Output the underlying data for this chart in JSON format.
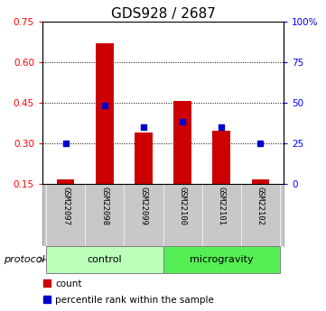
{
  "title": "GDS928 / 2687",
  "samples": [
    "GSM22097",
    "GSM22098",
    "GSM22099",
    "GSM22100",
    "GSM22101",
    "GSM22102"
  ],
  "red_bars": [
    0.165,
    0.67,
    0.34,
    0.455,
    0.345,
    0.165
  ],
  "blue_squares": [
    0.3,
    0.44,
    0.36,
    0.38,
    0.36,
    0.3
  ],
  "red_bar_bottom": 0.15,
  "ylim_left": [
    0.15,
    0.75
  ],
  "yticks_left": [
    0.15,
    0.3,
    0.45,
    0.6,
    0.75
  ],
  "ytick_labels_left": [
    "0.15",
    "0.30",
    "0.45",
    "0.60",
    "0.75"
  ],
  "yticks_right_vals": [
    0.15,
    0.3,
    0.45,
    0.6,
    0.75
  ],
  "ytick_labels_right": [
    "0",
    "25",
    "50",
    "75",
    "100%"
  ],
  "groups": [
    {
      "label": "control",
      "samples": [
        0,
        1,
        2
      ],
      "color": "#bbffbb"
    },
    {
      "label": "microgravity",
      "samples": [
        3,
        4,
        5
      ],
      "color": "#55ee55"
    }
  ],
  "protocol_label": "protocol",
  "bar_color": "#cc0000",
  "square_color": "#0000cc",
  "bar_width": 0.45,
  "bg_plot": "#ffffff",
  "bg_sample_box": "#c8c8c8",
  "legend_count": "count",
  "legend_pct": "percentile rank within the sample",
  "title_fontsize": 11,
  "tick_fontsize": 7.5,
  "sample_fontsize": 6.5
}
